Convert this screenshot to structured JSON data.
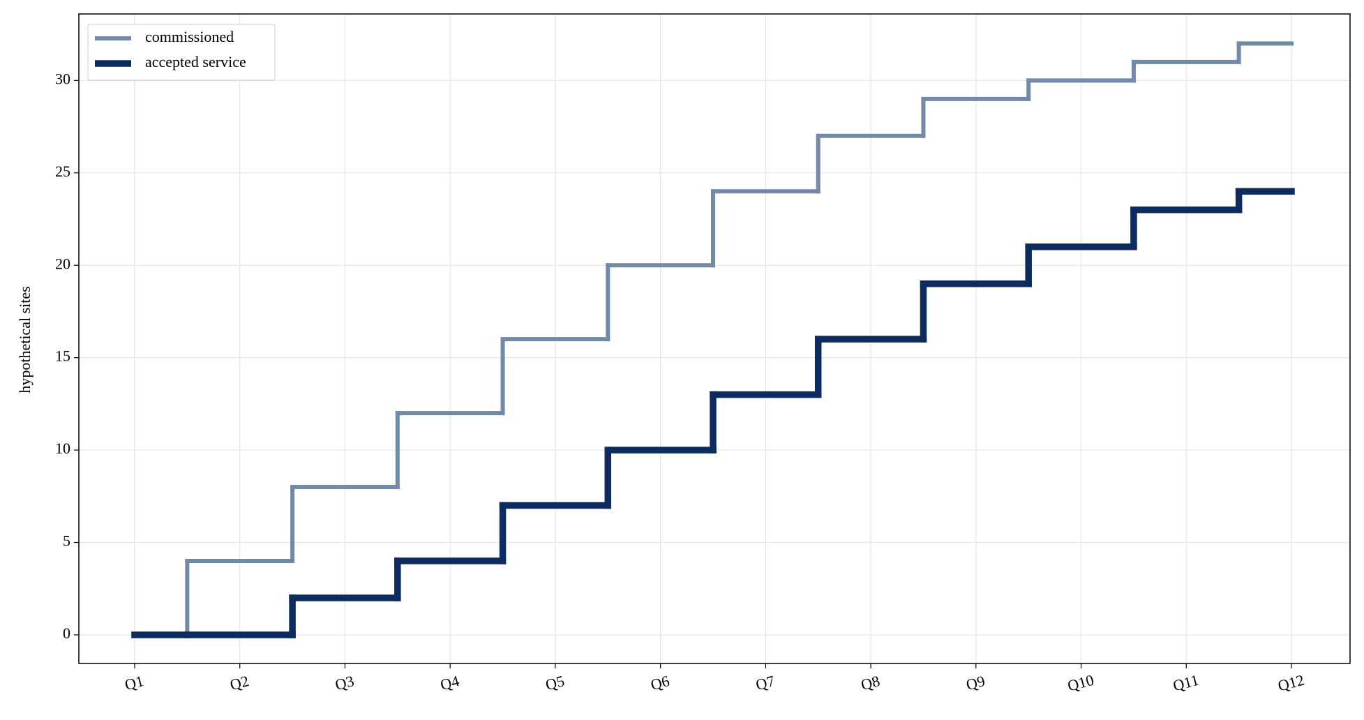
{
  "chart_data": {
    "type": "step",
    "ylabel": "hypothetical sites",
    "categories": [
      "Q1",
      "Q2",
      "Q3",
      "Q4",
      "Q5",
      "Q6",
      "Q7",
      "Q8",
      "Q9",
      "Q10",
      "Q11",
      "Q12"
    ],
    "series": [
      {
        "name": "commissioned",
        "color": "#7289a8",
        "values": [
          0,
          4,
          8,
          12,
          16,
          20,
          24,
          27,
          29,
          30,
          31,
          32
        ]
      },
      {
        "name": "accepted service",
        "color": "#0d2b5e",
        "values": [
          0,
          0,
          2,
          4,
          7,
          10,
          13,
          16,
          19,
          21,
          23,
          24
        ]
      }
    ],
    "ylim": [
      -1.55,
      33.6
    ],
    "yticks": [
      0,
      5,
      10,
      15,
      20,
      25,
      30
    ],
    "grid": true,
    "legend": "upper left"
  }
}
